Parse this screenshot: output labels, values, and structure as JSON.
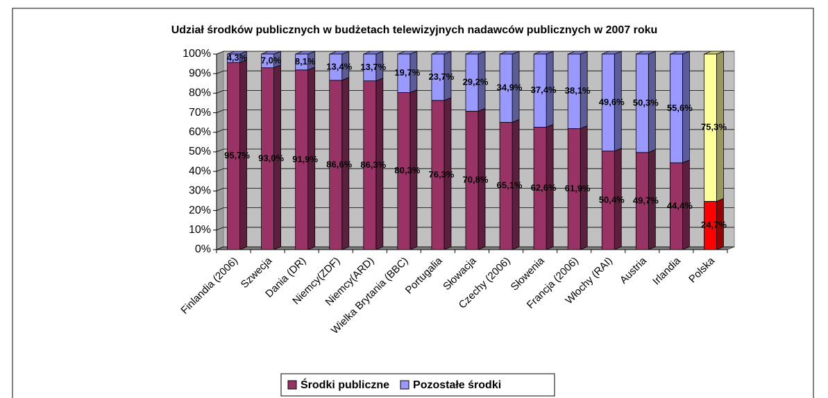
{
  "chart_data": {
    "type": "stacked_bar_3d",
    "title": "Udział środków publicznych w budżetach telewizyjnych nadawców publicznych w 2007 roku",
    "categories": [
      "Finlandia (2006)",
      "Szwecja",
      "Dania (DR)",
      "Niemcy(ZDF)",
      "Niemcy(ARD)",
      "Wielka Brytania (BBC)",
      "Portugalia",
      "Słowacja",
      "Czechy (2006)",
      "Słowenia",
      "Francja (2006)",
      "Włochy (RAI)",
      "Austria",
      "Irlandia",
      "Polska"
    ],
    "series": [
      {
        "name": "Środki publiczne",
        "color": "#993366",
        "colors": [
          "#993366",
          "#993366",
          "#993366",
          "#993366",
          "#993366",
          "#993366",
          "#993366",
          "#993366",
          "#993366",
          "#993366",
          "#993366",
          "#993366",
          "#993366",
          "#993366",
          "#ff0000"
        ],
        "values": [
          95.7,
          93.0,
          91.9,
          86.6,
          86.3,
          80.3,
          76.3,
          70.8,
          65.1,
          62.6,
          61.9,
          50.4,
          49.7,
          44.4,
          24.7
        ],
        "value_labels": [
          "95,7%",
          "93,0%",
          "91,9%",
          "86,6%",
          "86,3%",
          "80,3%",
          "76,3%",
          "70,8%",
          "65,1%",
          "62,6%",
          "61,9%",
          "50,4%",
          "49,7%",
          "44,4%",
          "24,7%"
        ]
      },
      {
        "name": "Pozostałe środki",
        "color": "#9999ff",
        "colors": [
          "#9999ff",
          "#9999ff",
          "#9999ff",
          "#9999ff",
          "#9999ff",
          "#9999ff",
          "#9999ff",
          "#9999ff",
          "#9999ff",
          "#9999ff",
          "#9999ff",
          "#9999ff",
          "#9999ff",
          "#9999ff",
          "#ffff99"
        ],
        "values": [
          4.3,
          7.0,
          8.1,
          13.4,
          13.7,
          19.7,
          23.7,
          29.2,
          34.9,
          37.4,
          38.1,
          49.6,
          50.3,
          55.6,
          75.3
        ],
        "value_labels": [
          "4,3%",
          "7,0%",
          "8,1%",
          "13,4%",
          "13,7%",
          "19,7%",
          "23,7%",
          "29,2%",
          "34,9%",
          "37,4%",
          "38,1%",
          "49,6%",
          "50,3%",
          "55,6%",
          "75,3%"
        ]
      }
    ],
    "ylim": [
      0,
      100
    ],
    "yticks": [
      {
        "value": 0,
        "label": "0%"
      },
      {
        "value": 10,
        "label": "10%"
      },
      {
        "value": 20,
        "label": "20%"
      },
      {
        "value": 30,
        "label": "30%"
      },
      {
        "value": 40,
        "label": "40%"
      },
      {
        "value": 50,
        "label": "50%"
      },
      {
        "value": 60,
        "label": "60%"
      },
      {
        "value": 70,
        "label": "70%"
      },
      {
        "value": 80,
        "label": "80%"
      },
      {
        "value": 90,
        "label": "90%"
      },
      {
        "value": 100,
        "label": "100%"
      }
    ],
    "grid": true,
    "legend": "bottom"
  }
}
